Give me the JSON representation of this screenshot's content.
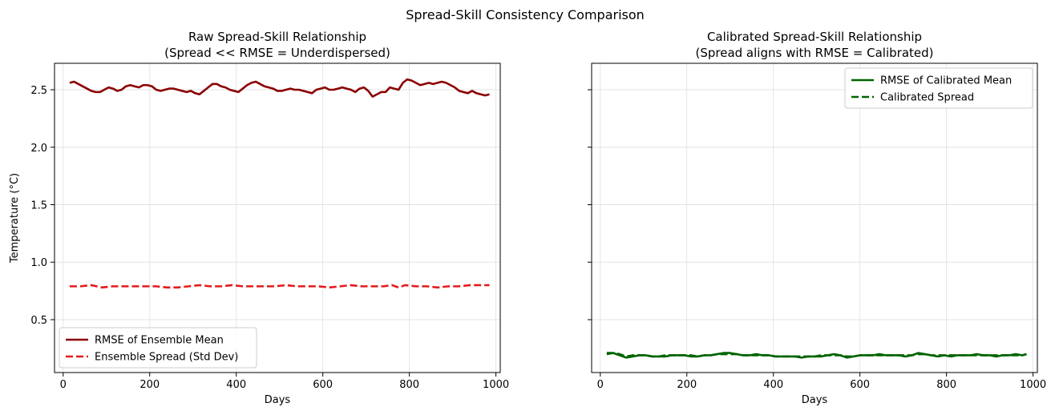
{
  "figure": {
    "suptitle": "Spread-Skill Consistency Comparison"
  },
  "chart_data": [
    {
      "type": "line",
      "title_line1": "Raw Spread-Skill Relationship",
      "title_line2": "(Spread << RMSE = Underdispersed)",
      "xlabel": "Days",
      "ylabel": "Temperature (°C)",
      "xlim": [
        -20,
        1010
      ],
      "ylim": [
        0.04,
        2.73
      ],
      "xticks": [
        0,
        200,
        400,
        600,
        800,
        1000
      ],
      "yticks": [
        0.5,
        1.0,
        1.5,
        2.0,
        2.5
      ],
      "ytick_labels": [
        "0.5",
        "1.0",
        "1.5",
        "2.0",
        "2.5"
      ],
      "show_ytick_labels": true,
      "grid": true,
      "legend_position": "lower-left",
      "series": [
        {
          "name": "RMSE of Ensemble Mean",
          "color": "#8b0000",
          "dash": "solid",
          "x": [
            15,
            25,
            35,
            45,
            55,
            65,
            75,
            85,
            95,
            105,
            115,
            125,
            135,
            145,
            155,
            165,
            175,
            185,
            195,
            205,
            215,
            225,
            235,
            245,
            255,
            265,
            275,
            285,
            295,
            305,
            315,
            325,
            335,
            345,
            355,
            365,
            375,
            385,
            395,
            405,
            415,
            425,
            435,
            445,
            455,
            465,
            475,
            485,
            495,
            505,
            515,
            525,
            535,
            545,
            555,
            565,
            575,
            585,
            595,
            605,
            615,
            625,
            635,
            645,
            655,
            665,
            675,
            685,
            695,
            705,
            715,
            725,
            735,
            745,
            755,
            765,
            775,
            785,
            795,
            805,
            815,
            825,
            835,
            845,
            855,
            865,
            875,
            885,
            895,
            905,
            915,
            925,
            935,
            945,
            955,
            965,
            975,
            985
          ],
          "y": [
            2.56,
            2.57,
            2.55,
            2.53,
            2.51,
            2.49,
            2.48,
            2.48,
            2.5,
            2.52,
            2.51,
            2.49,
            2.5,
            2.53,
            2.54,
            2.53,
            2.52,
            2.54,
            2.54,
            2.53,
            2.5,
            2.49,
            2.5,
            2.51,
            2.51,
            2.5,
            2.49,
            2.48,
            2.49,
            2.47,
            2.46,
            2.49,
            2.52,
            2.55,
            2.55,
            2.53,
            2.52,
            2.5,
            2.49,
            2.48,
            2.51,
            2.54,
            2.56,
            2.57,
            2.55,
            2.53,
            2.52,
            2.51,
            2.49,
            2.49,
            2.5,
            2.51,
            2.5,
            2.5,
            2.49,
            2.48,
            2.47,
            2.5,
            2.51,
            2.52,
            2.5,
            2.5,
            2.51,
            2.52,
            2.51,
            2.5,
            2.48,
            2.51,
            2.52,
            2.49,
            2.44,
            2.46,
            2.48,
            2.48,
            2.52,
            2.51,
            2.5,
            2.56,
            2.59,
            2.58,
            2.56,
            2.54,
            2.55,
            2.56,
            2.55,
            2.56,
            2.57,
            2.56,
            2.54,
            2.52,
            2.49,
            2.48,
            2.47,
            2.49,
            2.47,
            2.46,
            2.45,
            2.46
          ]
        },
        {
          "name": "Ensemble Spread (Std Dev)",
          "color": "#e41a1c",
          "dash": "dashed",
          "x": [
            15,
            40,
            65,
            90,
            115,
            140,
            165,
            190,
            215,
            240,
            265,
            290,
            315,
            340,
            365,
            390,
            415,
            440,
            465,
            490,
            515,
            540,
            565,
            590,
            615,
            640,
            665,
            690,
            715,
            740,
            760,
            775,
            790,
            815,
            840,
            865,
            890,
            915,
            940,
            965,
            985
          ],
          "y": [
            0.79,
            0.79,
            0.8,
            0.78,
            0.79,
            0.79,
            0.79,
            0.79,
            0.79,
            0.78,
            0.78,
            0.79,
            0.8,
            0.79,
            0.79,
            0.8,
            0.79,
            0.79,
            0.79,
            0.79,
            0.8,
            0.79,
            0.79,
            0.79,
            0.78,
            0.79,
            0.8,
            0.79,
            0.79,
            0.79,
            0.8,
            0.78,
            0.8,
            0.79,
            0.79,
            0.78,
            0.79,
            0.79,
            0.8,
            0.8,
            0.8
          ]
        }
      ]
    },
    {
      "type": "line",
      "title_line1": "Calibrated Spread-Skill Relationship",
      "title_line2": "(Spread aligns with RMSE = Calibrated)",
      "xlabel": "Days",
      "ylabel": "",
      "xlim": [
        -20,
        1010
      ],
      "ylim": [
        0.04,
        2.73
      ],
      "xticks": [
        0,
        200,
        400,
        600,
        800,
        1000
      ],
      "yticks": [
        0.5,
        1.0,
        1.5,
        2.0,
        2.5
      ],
      "ytick_labels": [
        "",
        "",
        "",
        "",
        ""
      ],
      "show_ytick_labels": false,
      "grid": true,
      "legend_position": "upper-right",
      "series": [
        {
          "name": "RMSE of Calibrated Mean",
          "color": "#006400",
          "dash": "solid",
          "x": [
            15,
            30,
            45,
            60,
            75,
            90,
            105,
            120,
            135,
            150,
            165,
            180,
            195,
            210,
            225,
            240,
            255,
            270,
            285,
            300,
            315,
            330,
            345,
            360,
            375,
            390,
            405,
            420,
            435,
            450,
            465,
            480,
            495,
            510,
            525,
            540,
            555,
            570,
            585,
            600,
            615,
            630,
            645,
            660,
            675,
            690,
            705,
            720,
            735,
            750,
            765,
            780,
            795,
            810,
            825,
            840,
            855,
            870,
            885,
            900,
            915,
            930,
            945,
            960,
            975,
            985
          ],
          "y": [
            0.2,
            0.21,
            0.19,
            0.17,
            0.18,
            0.19,
            0.19,
            0.18,
            0.18,
            0.18,
            0.19,
            0.19,
            0.19,
            0.18,
            0.18,
            0.19,
            0.19,
            0.2,
            0.21,
            0.21,
            0.2,
            0.19,
            0.19,
            0.2,
            0.19,
            0.19,
            0.18,
            0.18,
            0.18,
            0.18,
            0.17,
            0.18,
            0.18,
            0.18,
            0.19,
            0.2,
            0.19,
            0.17,
            0.18,
            0.19,
            0.19,
            0.19,
            0.2,
            0.19,
            0.19,
            0.19,
            0.18,
            0.19,
            0.21,
            0.2,
            0.19,
            0.18,
            0.19,
            0.18,
            0.19,
            0.19,
            0.19,
            0.2,
            0.19,
            0.19,
            0.18,
            0.19,
            0.19,
            0.2,
            0.19,
            0.2
          ]
        },
        {
          "name": "Calibrated Spread",
          "color": "#006400",
          "dash": "dashed",
          "x": [
            15,
            30,
            45,
            60,
            75,
            90,
            105,
            120,
            135,
            150,
            165,
            180,
            195,
            210,
            225,
            240,
            255,
            270,
            285,
            300,
            315,
            330,
            345,
            360,
            375,
            390,
            405,
            420,
            435,
            450,
            465,
            480,
            495,
            510,
            525,
            540,
            555,
            570,
            585,
            600,
            615,
            630,
            645,
            660,
            675,
            690,
            705,
            720,
            735,
            750,
            765,
            780,
            795,
            810,
            825,
            840,
            855,
            870,
            885,
            900,
            915,
            930,
            945,
            960,
            975,
            985
          ],
          "y": [
            0.21,
            0.21,
            0.2,
            0.18,
            0.19,
            0.19,
            0.19,
            0.18,
            0.18,
            0.19,
            0.19,
            0.19,
            0.19,
            0.19,
            0.18,
            0.19,
            0.19,
            0.2,
            0.2,
            0.2,
            0.2,
            0.19,
            0.19,
            0.19,
            0.19,
            0.19,
            0.18,
            0.18,
            0.18,
            0.18,
            0.18,
            0.18,
            0.18,
            0.19,
            0.19,
            0.19,
            0.19,
            0.18,
            0.18,
            0.19,
            0.19,
            0.19,
            0.19,
            0.19,
            0.19,
            0.19,
            0.19,
            0.19,
            0.2,
            0.2,
            0.19,
            0.19,
            0.19,
            0.19,
            0.19,
            0.19,
            0.19,
            0.19,
            0.19,
            0.19,
            0.19,
            0.19,
            0.19,
            0.19,
            0.19,
            0.2
          ]
        }
      ]
    }
  ]
}
